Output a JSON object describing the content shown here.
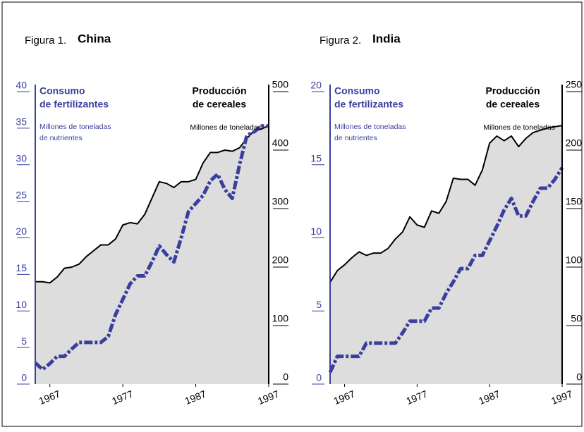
{
  "chart_data": [
    {
      "type": "line",
      "figure_label": "Figura 1.",
      "title": "China",
      "y_label": [
        "Consumo",
        "de fertilizantes"
      ],
      "y_unit": [
        "Millones de toneladas",
        "de nutrientes"
      ],
      "y2_label": [
        "Producción",
        "de cereales"
      ],
      "y2_unit": [
        "Millones de toneladas"
      ],
      "x": [
        1965,
        1966,
        1967,
        1968,
        1969,
        1970,
        1971,
        1972,
        1973,
        1974,
        1975,
        1976,
        1977,
        1978,
        1979,
        1980,
        1981,
        1982,
        1983,
        1984,
        1985,
        1986,
        1987,
        1988,
        1989,
        1990,
        1991,
        1992,
        1993,
        1994,
        1995,
        1996,
        1997
      ],
      "xlim": [
        1965,
        1997
      ],
      "xticks": [
        1967,
        1977,
        1987,
        1997
      ],
      "ylim": [
        0,
        40
      ],
      "yticks": [
        0,
        5,
        10,
        15,
        20,
        25,
        30,
        35,
        40
      ],
      "y2lim": [
        0,
        500
      ],
      "y2ticks": [
        0,
        100,
        200,
        300,
        400,
        500
      ],
      "series": [
        {
          "color": "#000000",
          "axis": "y2",
          "fill": "#dddddd",
          "values": [
            175,
            175,
            173,
            183,
            198,
            200,
            205,
            218,
            228,
            238,
            238,
            248,
            272,
            276,
            274,
            290,
            318,
            346,
            343,
            336,
            346,
            346,
            350,
            378,
            396,
            396,
            400,
            398,
            404,
            420,
            433,
            436,
            442
          ]
        },
        {
          "color": "#3a3f9e",
          "axis": "y",
          "values": [
            2.9,
            2.0,
            2.8,
            3.8,
            3.8,
            4.8,
            5.7,
            5.7,
            5.7,
            5.7,
            6.5,
            9.5,
            11.6,
            13.7,
            14.8,
            14.8,
            16.7,
            18.9,
            17.7,
            16.7,
            20,
            23.6,
            24.7,
            25.8,
            27.8,
            28.7,
            26.6,
            25.4,
            30,
            34,
            34.5,
            35.3,
            35.3
          ]
        }
      ]
    },
    {
      "type": "line",
      "figure_label": "Figura 2.",
      "title": "India",
      "y_label": [
        "Consumo",
        "de fertilizantes"
      ],
      "y_unit": [
        "Millones de toneladas",
        "de nutrientes"
      ],
      "y2_label": [
        "Producción",
        "de cereales"
      ],
      "y2_unit": [
        "Millones de toneladas"
      ],
      "x": [
        1965,
        1966,
        1967,
        1968,
        1969,
        1970,
        1971,
        1972,
        1973,
        1974,
        1975,
        1976,
        1977,
        1978,
        1979,
        1980,
        1981,
        1982,
        1983,
        1984,
        1985,
        1986,
        1987,
        1988,
        1989,
        1990,
        1991,
        1992,
        1993,
        1994,
        1995,
        1996,
        1997
      ],
      "xlim": [
        1965,
        1997
      ],
      "xticks": [
        1967,
        1977,
        1987,
        1997
      ],
      "ylim": [
        0,
        20
      ],
      "yticks": [
        0,
        5,
        10,
        15,
        20
      ],
      "y2lim": [
        0,
        250
      ],
      "y2ticks": [
        0,
        50,
        100,
        150,
        200,
        250
      ],
      "series": [
        {
          "color": "#000000",
          "axis": "y2",
          "fill": "#dddddd",
          "values": [
            87,
            97,
            102,
            108,
            113,
            110,
            112,
            112,
            116,
            124,
            130,
            143,
            136,
            134,
            148,
            146,
            156,
            176,
            175,
            175,
            170,
            183,
            206,
            212,
            208,
            212,
            203,
            210,
            215,
            217,
            219,
            220,
            221
          ]
        },
        {
          "color": "#3a3f9e",
          "axis": "y",
          "values": [
            0.8,
            1.9,
            1.9,
            1.9,
            1.9,
            2.8,
            2.8,
            2.8,
            2.8,
            2.8,
            3.5,
            4.3,
            4.3,
            4.3,
            5.2,
            5.2,
            6.2,
            7.0,
            7.9,
            7.9,
            8.8,
            8.8,
            9.8,
            10.8,
            11.9,
            12.7,
            11.5,
            11.5,
            12.5,
            13.4,
            13.4,
            14.0,
            14.8
          ]
        }
      ]
    }
  ]
}
